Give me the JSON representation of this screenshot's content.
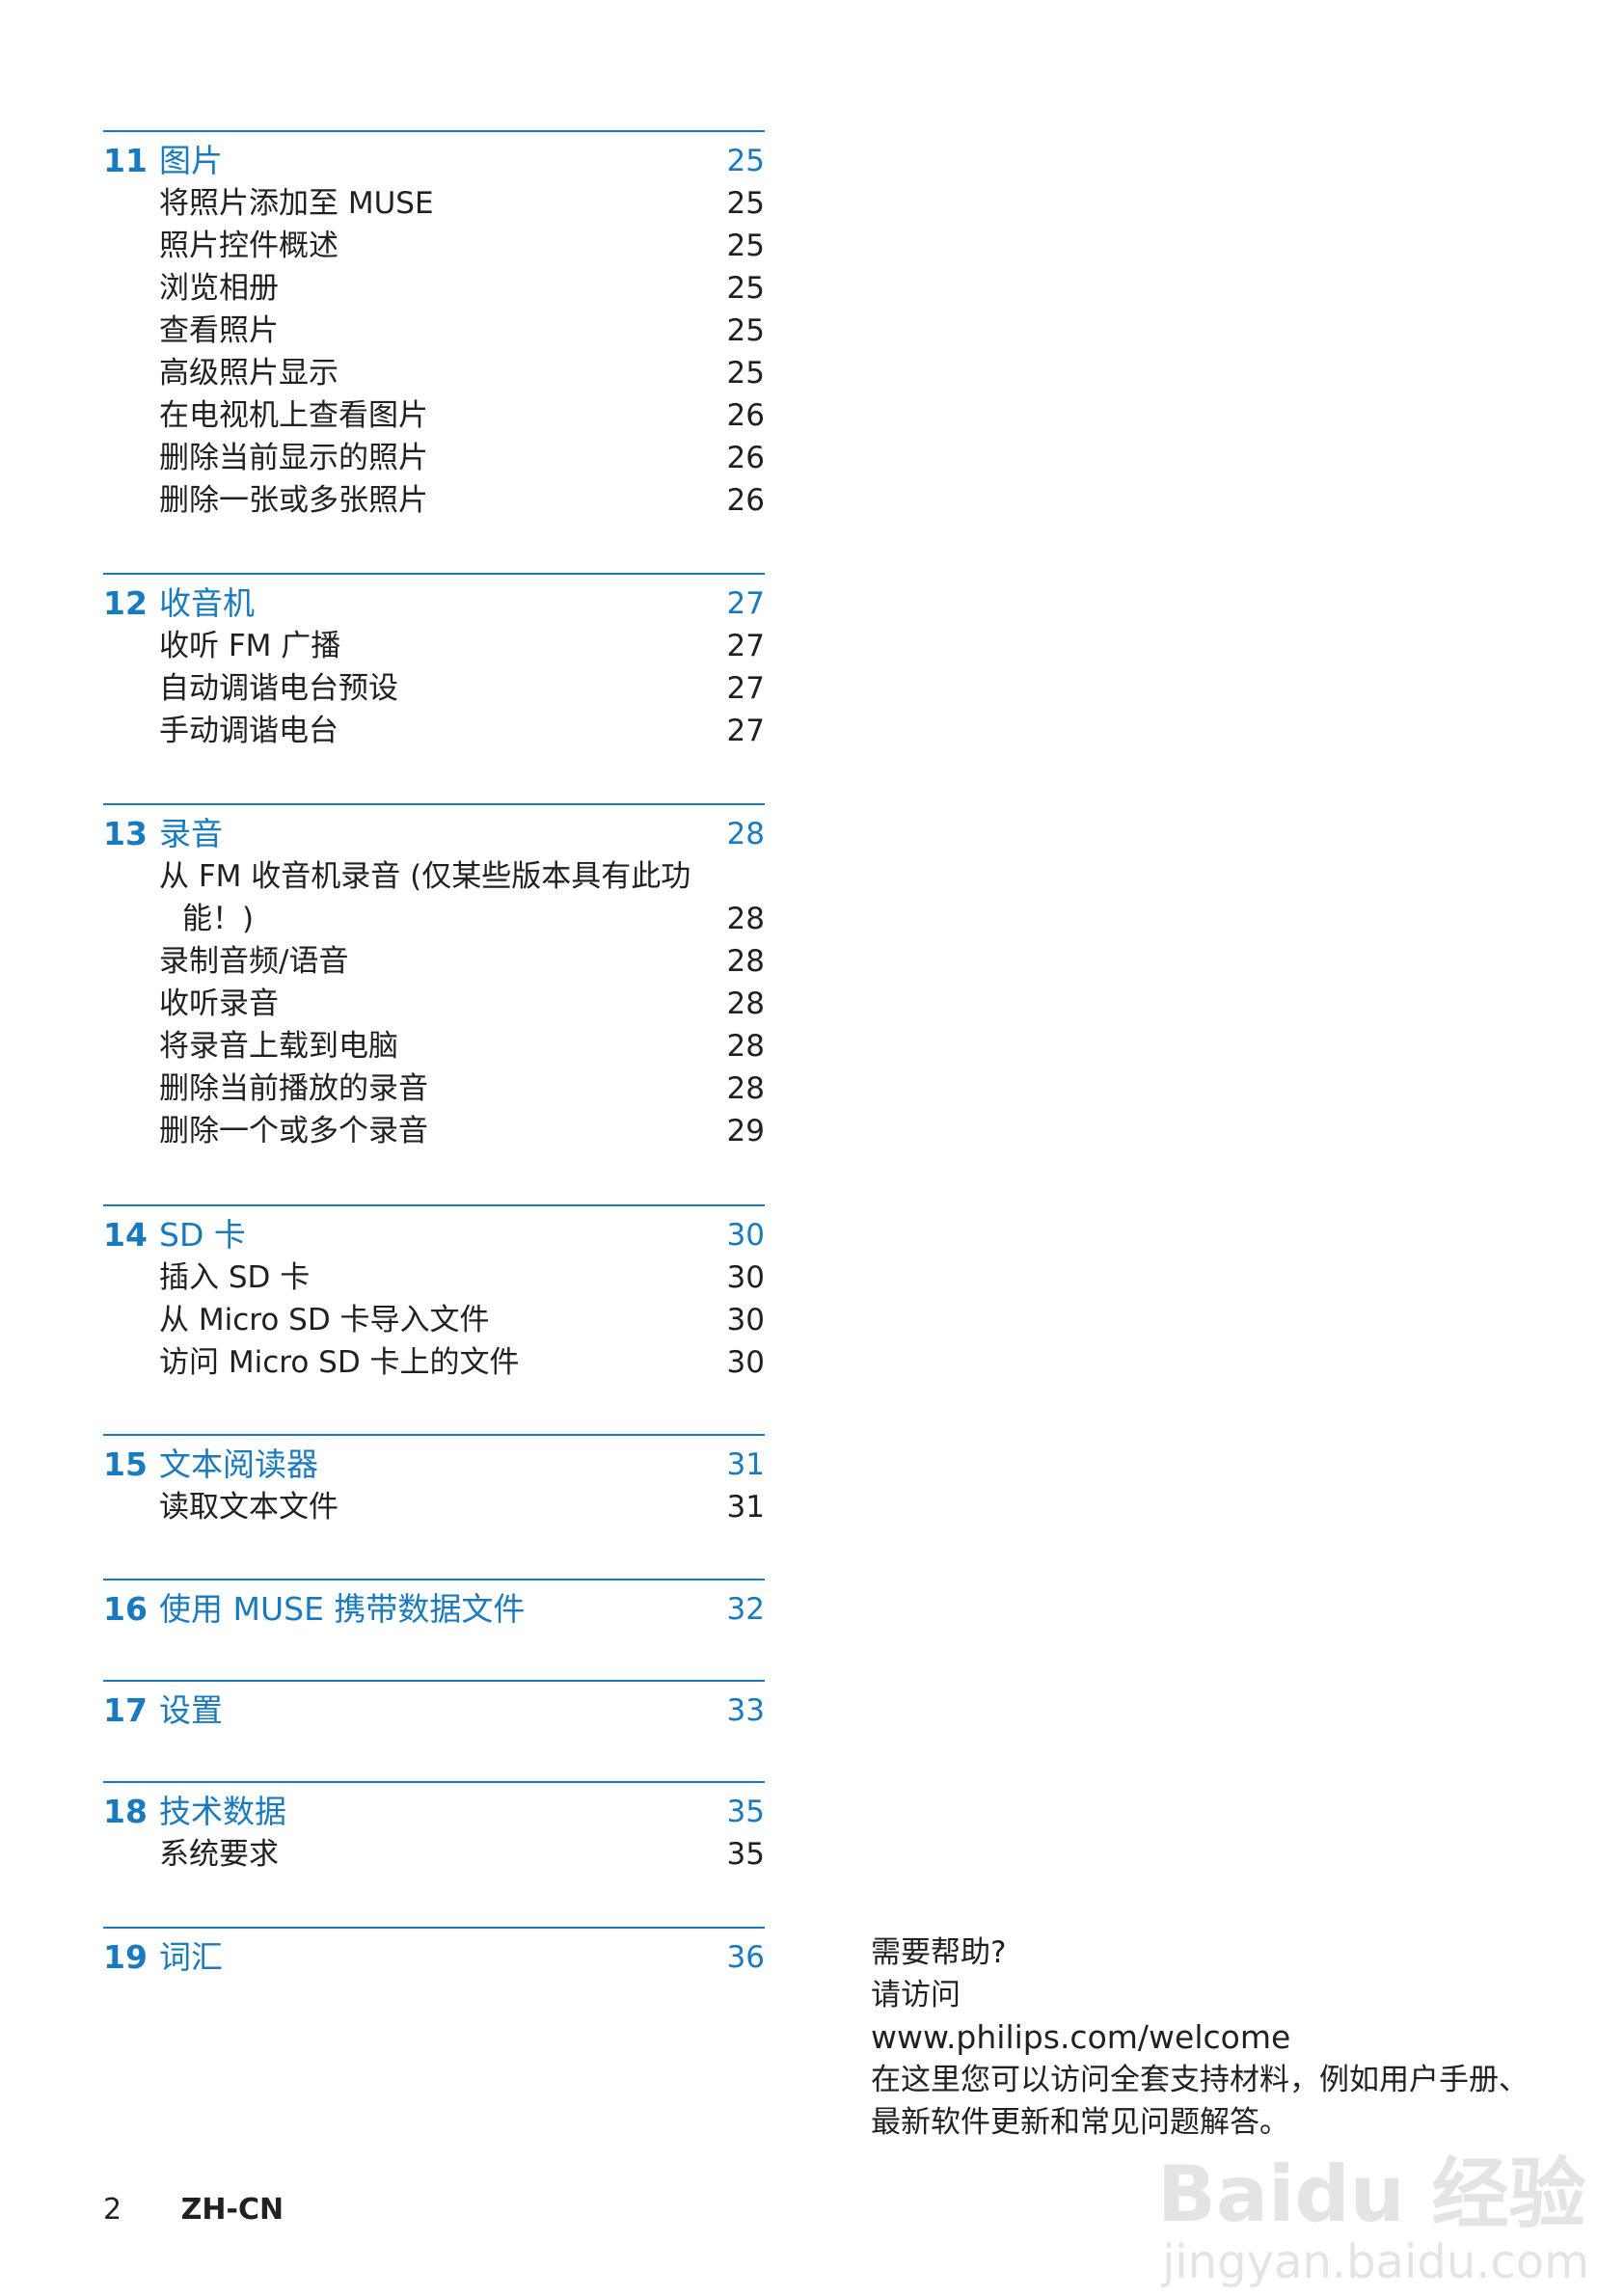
{
  "toc": [
    {
      "num": "11",
      "title": "图片",
      "page": "25",
      "items": [
        {
          "text": "将照片添加至 MUSE",
          "page": "25"
        },
        {
          "text": "照片控件概述",
          "page": "25"
        },
        {
          "text": "浏览相册",
          "page": "25"
        },
        {
          "text": "查看照片",
          "page": "25"
        },
        {
          "text": "高级照片显示",
          "page": "25"
        },
        {
          "text": "在电视机上查看图片",
          "page": "26"
        },
        {
          "text": "删除当前显示的照片",
          "page": "26"
        },
        {
          "text": "删除一张或多张照片",
          "page": "26"
        }
      ]
    },
    {
      "num": "12",
      "title": "收音机",
      "page": "27",
      "items": [
        {
          "text": "收听 FM 广播",
          "page": "27"
        },
        {
          "text": "自动调谐电台预设",
          "page": "27"
        },
        {
          "text": "手动调谐电台",
          "page": "27"
        }
      ]
    },
    {
      "num": "13",
      "title": "录音",
      "page": "28",
      "items": [
        {
          "text": "从 FM 收音机录音 (仅某些版本具有此功能！)",
          "page": "28",
          "wrap": true
        },
        {
          "text": "录制音频/语音",
          "page": "28"
        },
        {
          "text": "收听录音",
          "page": "28"
        },
        {
          "text": "将录音上载到电脑",
          "page": "28"
        },
        {
          "text": "删除当前播放的录音",
          "page": "28"
        },
        {
          "text": "删除一个或多个录音",
          "page": "29"
        }
      ]
    },
    {
      "num": "14",
      "title": "SD 卡",
      "page": "30",
      "items": [
        {
          "text": "插入 SD 卡",
          "page": "30"
        },
        {
          "text": "从 Micro SD 卡导入文件",
          "page": "30"
        },
        {
          "text": "访问 Micro SD 卡上的文件",
          "page": "30"
        }
      ]
    },
    {
      "num": "15",
      "title": "文本阅读器",
      "page": "31",
      "items": [
        {
          "text": "读取文本文件",
          "page": "31"
        }
      ]
    },
    {
      "num": "16",
      "title": "使用 MUSE 携带数据文件",
      "page": "32",
      "items": []
    },
    {
      "num": "17",
      "title": "设置",
      "page": "33",
      "items": []
    },
    {
      "num": "18",
      "title": "技术数据",
      "page": "35",
      "items": [
        {
          "text": "系统要求",
          "page": "35"
        }
      ]
    },
    {
      "num": "19",
      "title": "词汇",
      "page": "36",
      "items": []
    }
  ],
  "help": {
    "heading": "需要帮助?",
    "visit": "请访问",
    "url": "www.philips.com/welcome",
    "description": "在这里您可以访问全套支持材料，例如用户手册、最新软件更新和常见问题解答。"
  },
  "footer": {
    "page_number": "2",
    "language": "ZH-CN"
  },
  "watermark": {
    "logo": "Baidu 经验",
    "url": "jingyan.baidu.com"
  },
  "colors": {
    "accent": "#1a7ac0",
    "text": "#231f20"
  }
}
